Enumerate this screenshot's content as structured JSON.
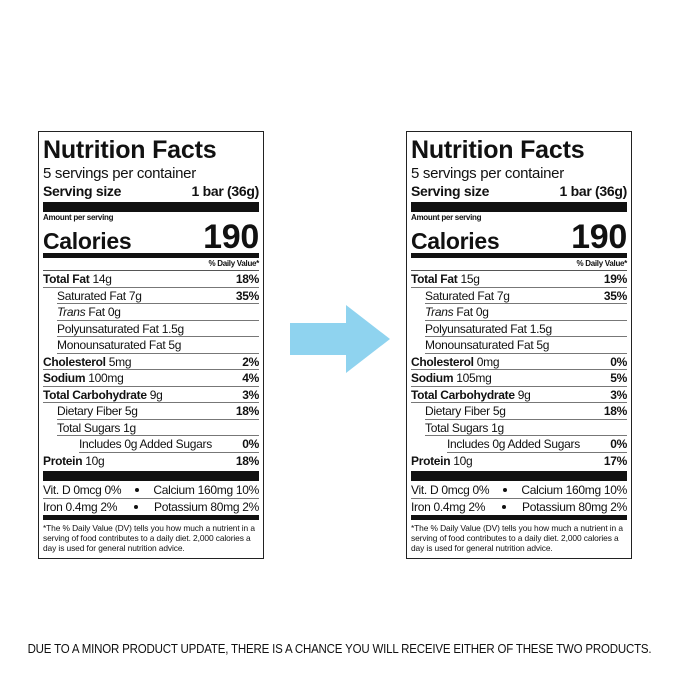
{
  "labels": [
    {
      "title": "Nutrition Facts",
      "servings": "5 servings per container",
      "serving_size_label": "Serving size",
      "serving_size": "1 bar (36g)",
      "amount_per_serving": "Amount per serving",
      "calories_label": "Calories",
      "calories": "190",
      "daily_value_header": "% Daily Value*",
      "nutrients": [
        {
          "name": "Total Fat",
          "amount": "14g",
          "dv": "18%"
        },
        {
          "name": "Saturated Fat",
          "amount": "7g",
          "dv": "35%"
        },
        {
          "name": "Trans",
          "amount": "Fat 0g"
        },
        {
          "name": "Polyunsaturated Fat",
          "amount": "1.5g"
        },
        {
          "name": "Monounsaturated Fat",
          "amount": "5g"
        },
        {
          "name": "Cholesterol",
          "amount": "5mg",
          "dv": "2%"
        },
        {
          "name": "Sodium",
          "amount": "100mg",
          "dv": "4%"
        },
        {
          "name": "Total Carbohydrate",
          "amount": "9g",
          "dv": "3%"
        },
        {
          "name": "Dietary Fiber",
          "amount": "5g",
          "dv": "18%"
        },
        {
          "name": "Total Sugars",
          "amount": "1g"
        },
        {
          "name": "Includes 0g Added Sugars",
          "dv": "0%"
        },
        {
          "name": "Protein",
          "amount": "10g",
          "dv": "18%"
        }
      ],
      "vitamins": [
        [
          "Vit. D 0mcg 0%",
          "Calcium 160mg 10%"
        ],
        [
          "Iron 0.4mg 2%",
          "Potassium 80mg 2%"
        ]
      ],
      "footnote": "*The % Daily Value (DV) tells you how much a nutrient in a serving of food contributes to a daily diet. 2,000 calories a day is used for general nutrition advice."
    },
    {
      "title": "Nutrition Facts",
      "servings": "5 servings per container",
      "serving_size_label": "Serving size",
      "serving_size": "1 bar (36g)",
      "amount_per_serving": "Amount per serving",
      "calories_label": "Calories",
      "calories": "190",
      "daily_value_header": "% Daily Value*",
      "nutrients": [
        {
          "name": "Total Fat",
          "amount": "15g",
          "dv": "19%"
        },
        {
          "name": "Saturated Fat",
          "amount": "7g",
          "dv": "35%"
        },
        {
          "name": "Trans",
          "amount": "Fat 0g"
        },
        {
          "name": "Polyunsaturated Fat",
          "amount": "1.5g"
        },
        {
          "name": "Monounsaturated Fat",
          "amount": "5g"
        },
        {
          "name": "Cholesterol",
          "amount": "0mg",
          "dv": "0%"
        },
        {
          "name": "Sodium",
          "amount": "105mg",
          "dv": "5%"
        },
        {
          "name": "Total Carbohydrate",
          "amount": "9g",
          "dv": "3%"
        },
        {
          "name": "Dietary Fiber",
          "amount": "5g",
          "dv": "18%"
        },
        {
          "name": "Total Sugars",
          "amount": "1g"
        },
        {
          "name": "Includes 0g Added Sugars",
          "dv": "0%"
        },
        {
          "name": "Protein",
          "amount": "10g",
          "dv": "17%"
        }
      ],
      "vitamins": [
        [
          "Vit. D 0mcg 0%",
          "Calcium 160mg 10%"
        ],
        [
          "Iron 0.4mg 2%",
          "Potassium 80mg 2%"
        ]
      ],
      "footnote": "*The % Daily Value (DV) tells you how much a nutrient in a serving of food contributes to a daily diet. 2,000 calories a day is used for general nutrition advice."
    }
  ],
  "caption": "DUE TO A MINOR PRODUCT UPDATE, THERE IS A CHANCE YOU WILL RECEIVE EITHER OF THESE TWO PRODUCTS."
}
